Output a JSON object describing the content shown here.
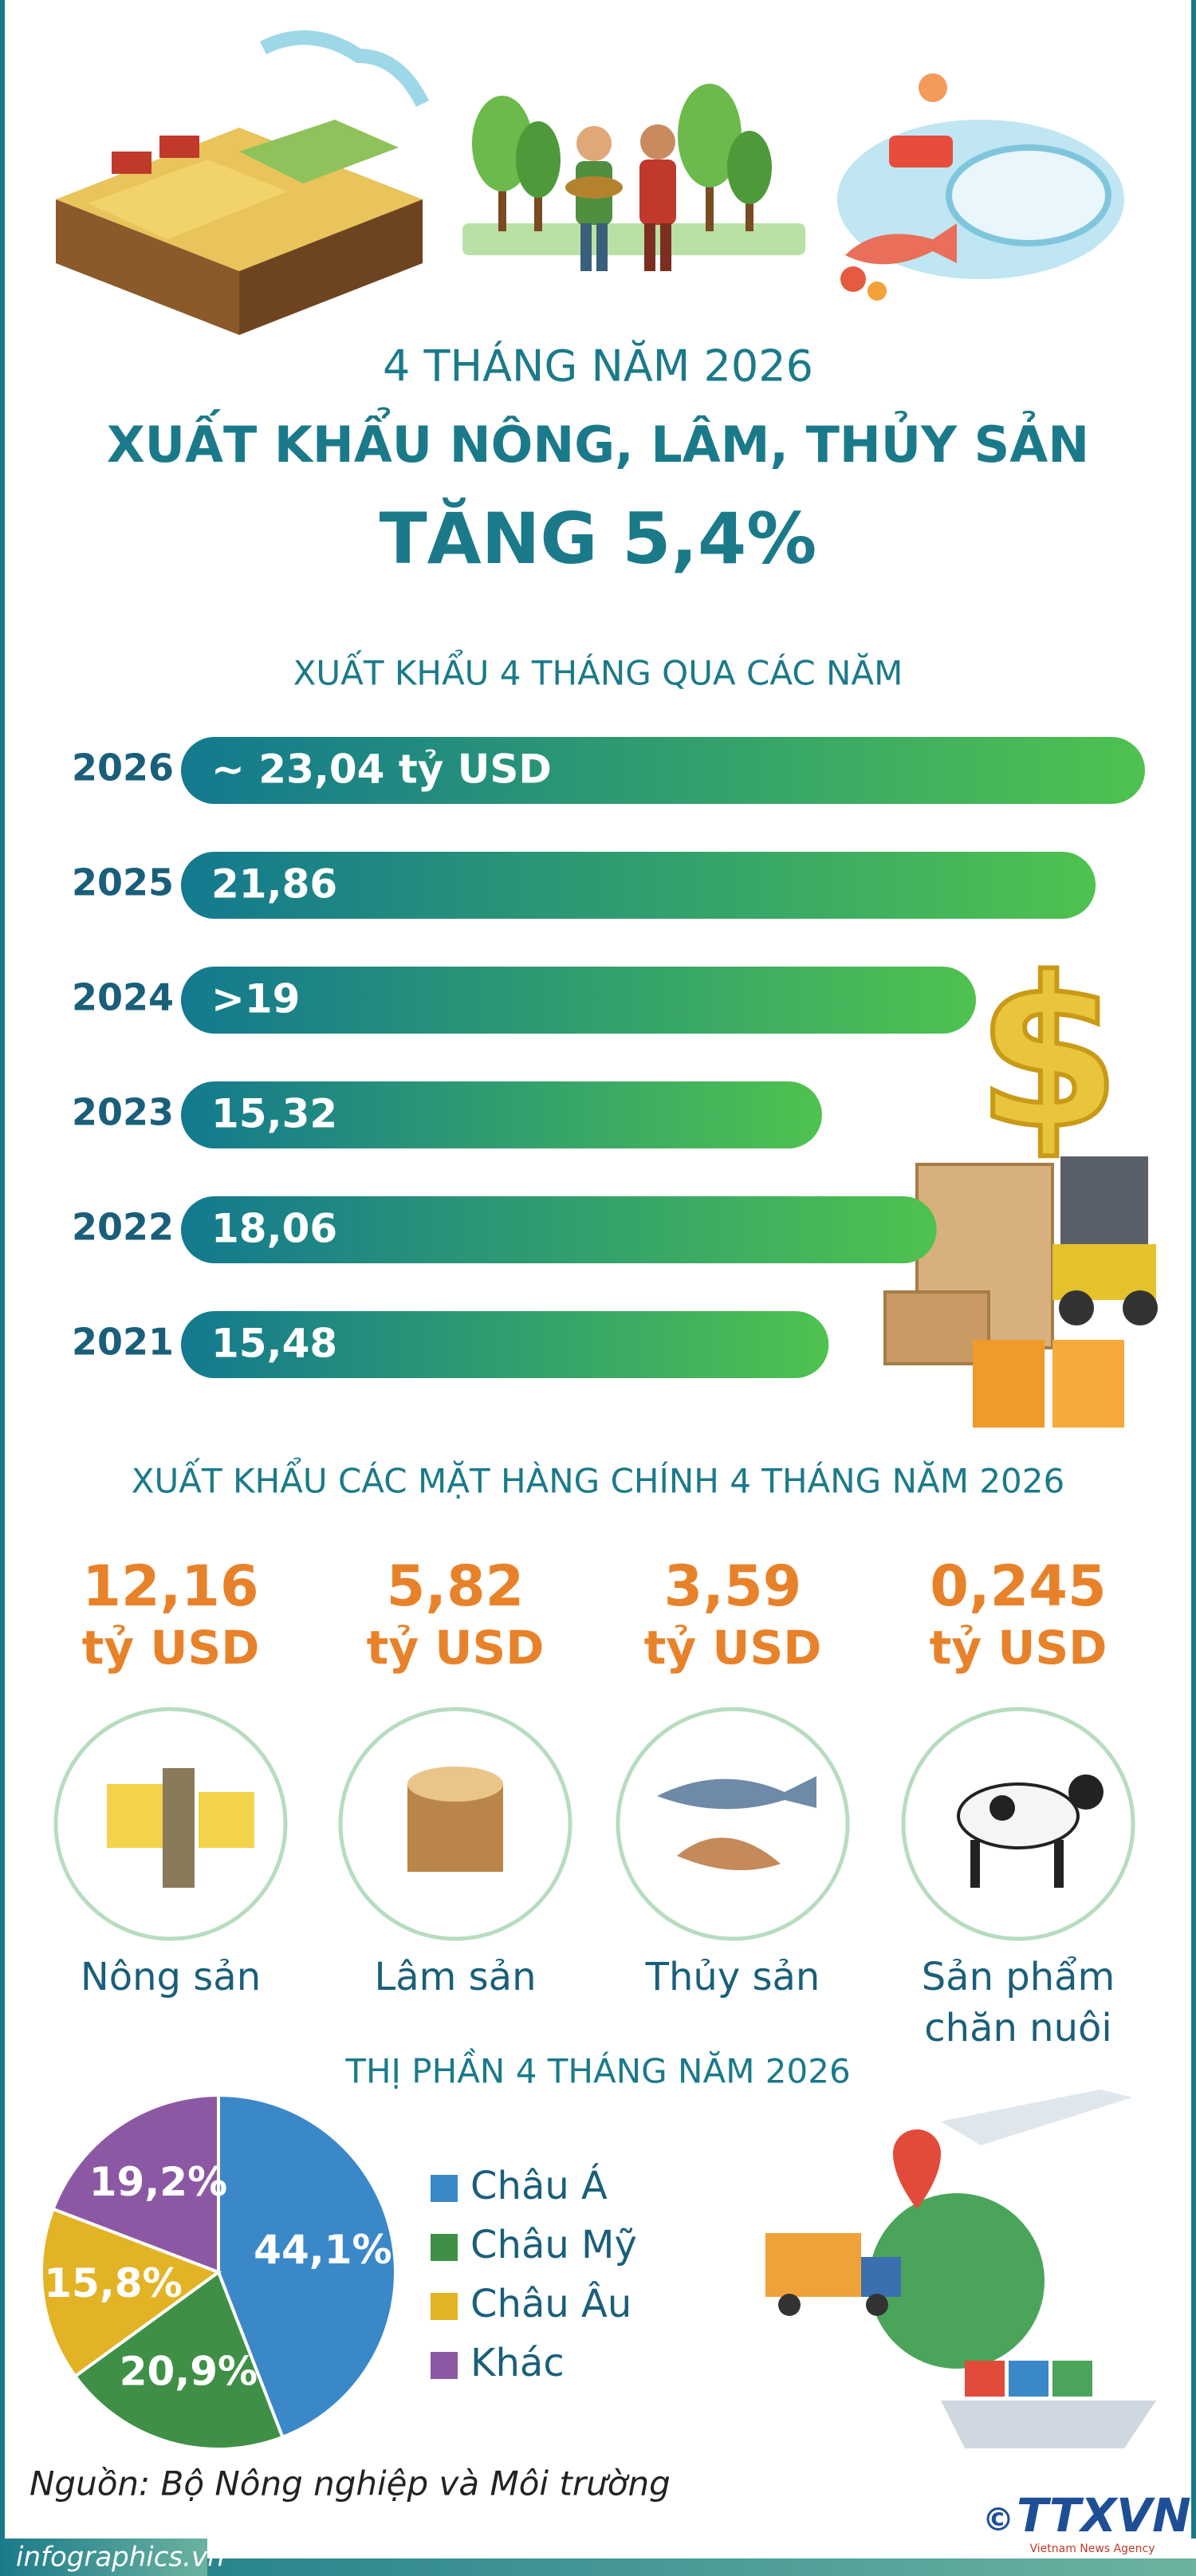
{
  "header": {
    "subtitle": "4 THÁNG NĂM 2026",
    "title": "XUẤT KHẨU NÔNG, LÂM, THỦY SẢN",
    "highlight": "TĂNG 5,4%"
  },
  "chart_data": [
    {
      "type": "bar",
      "orientation": "horizontal",
      "title": "XUẤT KHẨU 4 THÁNG QUA CÁC NĂM",
      "categories": [
        "2026",
        "2025",
        "2024",
        "2023",
        "2022",
        "2021"
      ],
      "values": [
        23.04,
        21.86,
        19,
        15.32,
        18.06,
        15.48
      ],
      "value_labels": [
        "~ 23,04 tỷ USD",
        "21,86",
        ">19",
        "15,32",
        "18,06",
        "15,48"
      ],
      "gradient": [
        "#13798f",
        "#4fc24f"
      ]
    },
    {
      "type": "pie",
      "title": "THỊ PHẦN 4 THÁNG NĂM 2026",
      "categories": [
        "Châu Á",
        "Châu Mỹ",
        "Châu Âu",
        "Khác"
      ],
      "values": [
        44.1,
        20.9,
        15.8,
        19.2
      ],
      "value_labels": [
        "44,1%",
        "20,9%",
        "15,8%",
        "19,2%"
      ],
      "colors": [
        "#3b88c9",
        "#3f9046",
        "#e2b325",
        "#8c58a3"
      ]
    }
  ],
  "products": {
    "title": "XUẤT KHẨU CÁC MẶT HÀNG CHÍNH 4 THÁNG NĂM 2026",
    "items": [
      {
        "value": "12,16",
        "unit": "tỷ USD",
        "name": [
          "Nông sản"
        ]
      },
      {
        "value": "5,82",
        "unit": "tỷ USD",
        "name": [
          "Lâm sản"
        ]
      },
      {
        "value": "3,59",
        "unit": "tỷ USD",
        "name": [
          "Thủy sản"
        ]
      },
      {
        "value": "0,245",
        "unit": "tỷ USD",
        "name": [
          "Sản phẩm",
          "chăn nuôi"
        ]
      }
    ]
  },
  "source": "Nguồn: Bộ Nông nghiệp và Môi trường",
  "footer": {
    "site": "infographics.vn",
    "copyright": "©",
    "logo": "TTXVN",
    "agency": "Vietnam News Agency"
  }
}
